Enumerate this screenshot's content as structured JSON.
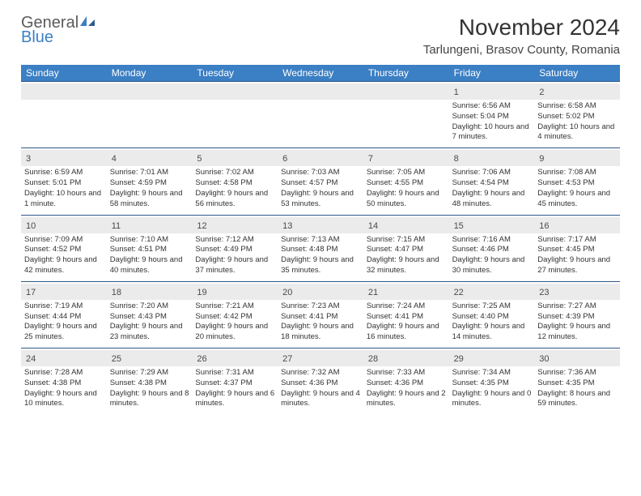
{
  "logo": {
    "word1": "General",
    "word2": "Blue"
  },
  "title": "November 2024",
  "location": "Tarlungeni, Brasov County, Romania",
  "colors": {
    "header_bg": "#3b7fc4",
    "daynum_bg": "#ebebeb",
    "week_border": "#2f5a8a",
    "text": "#333333"
  },
  "weekdays": [
    "Sunday",
    "Monday",
    "Tuesday",
    "Wednesday",
    "Thursday",
    "Friday",
    "Saturday"
  ],
  "weeks": [
    [
      {
        "n": "",
        "sunrise": "",
        "sunset": "",
        "daylight": ""
      },
      {
        "n": "",
        "sunrise": "",
        "sunset": "",
        "daylight": ""
      },
      {
        "n": "",
        "sunrise": "",
        "sunset": "",
        "daylight": ""
      },
      {
        "n": "",
        "sunrise": "",
        "sunset": "",
        "daylight": ""
      },
      {
        "n": "",
        "sunrise": "",
        "sunset": "",
        "daylight": ""
      },
      {
        "n": "1",
        "sunrise": "Sunrise: 6:56 AM",
        "sunset": "Sunset: 5:04 PM",
        "daylight": "Daylight: 10 hours and 7 minutes."
      },
      {
        "n": "2",
        "sunrise": "Sunrise: 6:58 AM",
        "sunset": "Sunset: 5:02 PM",
        "daylight": "Daylight: 10 hours and 4 minutes."
      }
    ],
    [
      {
        "n": "3",
        "sunrise": "Sunrise: 6:59 AM",
        "sunset": "Sunset: 5:01 PM",
        "daylight": "Daylight: 10 hours and 1 minute."
      },
      {
        "n": "4",
        "sunrise": "Sunrise: 7:01 AM",
        "sunset": "Sunset: 4:59 PM",
        "daylight": "Daylight: 9 hours and 58 minutes."
      },
      {
        "n": "5",
        "sunrise": "Sunrise: 7:02 AM",
        "sunset": "Sunset: 4:58 PM",
        "daylight": "Daylight: 9 hours and 56 minutes."
      },
      {
        "n": "6",
        "sunrise": "Sunrise: 7:03 AM",
        "sunset": "Sunset: 4:57 PM",
        "daylight": "Daylight: 9 hours and 53 minutes."
      },
      {
        "n": "7",
        "sunrise": "Sunrise: 7:05 AM",
        "sunset": "Sunset: 4:55 PM",
        "daylight": "Daylight: 9 hours and 50 minutes."
      },
      {
        "n": "8",
        "sunrise": "Sunrise: 7:06 AM",
        "sunset": "Sunset: 4:54 PM",
        "daylight": "Daylight: 9 hours and 48 minutes."
      },
      {
        "n": "9",
        "sunrise": "Sunrise: 7:08 AM",
        "sunset": "Sunset: 4:53 PM",
        "daylight": "Daylight: 9 hours and 45 minutes."
      }
    ],
    [
      {
        "n": "10",
        "sunrise": "Sunrise: 7:09 AM",
        "sunset": "Sunset: 4:52 PM",
        "daylight": "Daylight: 9 hours and 42 minutes."
      },
      {
        "n": "11",
        "sunrise": "Sunrise: 7:10 AM",
        "sunset": "Sunset: 4:51 PM",
        "daylight": "Daylight: 9 hours and 40 minutes."
      },
      {
        "n": "12",
        "sunrise": "Sunrise: 7:12 AM",
        "sunset": "Sunset: 4:49 PM",
        "daylight": "Daylight: 9 hours and 37 minutes."
      },
      {
        "n": "13",
        "sunrise": "Sunrise: 7:13 AM",
        "sunset": "Sunset: 4:48 PM",
        "daylight": "Daylight: 9 hours and 35 minutes."
      },
      {
        "n": "14",
        "sunrise": "Sunrise: 7:15 AM",
        "sunset": "Sunset: 4:47 PM",
        "daylight": "Daylight: 9 hours and 32 minutes."
      },
      {
        "n": "15",
        "sunrise": "Sunrise: 7:16 AM",
        "sunset": "Sunset: 4:46 PM",
        "daylight": "Daylight: 9 hours and 30 minutes."
      },
      {
        "n": "16",
        "sunrise": "Sunrise: 7:17 AM",
        "sunset": "Sunset: 4:45 PM",
        "daylight": "Daylight: 9 hours and 27 minutes."
      }
    ],
    [
      {
        "n": "17",
        "sunrise": "Sunrise: 7:19 AM",
        "sunset": "Sunset: 4:44 PM",
        "daylight": "Daylight: 9 hours and 25 minutes."
      },
      {
        "n": "18",
        "sunrise": "Sunrise: 7:20 AM",
        "sunset": "Sunset: 4:43 PM",
        "daylight": "Daylight: 9 hours and 23 minutes."
      },
      {
        "n": "19",
        "sunrise": "Sunrise: 7:21 AM",
        "sunset": "Sunset: 4:42 PM",
        "daylight": "Daylight: 9 hours and 20 minutes."
      },
      {
        "n": "20",
        "sunrise": "Sunrise: 7:23 AM",
        "sunset": "Sunset: 4:41 PM",
        "daylight": "Daylight: 9 hours and 18 minutes."
      },
      {
        "n": "21",
        "sunrise": "Sunrise: 7:24 AM",
        "sunset": "Sunset: 4:41 PM",
        "daylight": "Daylight: 9 hours and 16 minutes."
      },
      {
        "n": "22",
        "sunrise": "Sunrise: 7:25 AM",
        "sunset": "Sunset: 4:40 PM",
        "daylight": "Daylight: 9 hours and 14 minutes."
      },
      {
        "n": "23",
        "sunrise": "Sunrise: 7:27 AM",
        "sunset": "Sunset: 4:39 PM",
        "daylight": "Daylight: 9 hours and 12 minutes."
      }
    ],
    [
      {
        "n": "24",
        "sunrise": "Sunrise: 7:28 AM",
        "sunset": "Sunset: 4:38 PM",
        "daylight": "Daylight: 9 hours and 10 minutes."
      },
      {
        "n": "25",
        "sunrise": "Sunrise: 7:29 AM",
        "sunset": "Sunset: 4:38 PM",
        "daylight": "Daylight: 9 hours and 8 minutes."
      },
      {
        "n": "26",
        "sunrise": "Sunrise: 7:31 AM",
        "sunset": "Sunset: 4:37 PM",
        "daylight": "Daylight: 9 hours and 6 minutes."
      },
      {
        "n": "27",
        "sunrise": "Sunrise: 7:32 AM",
        "sunset": "Sunset: 4:36 PM",
        "daylight": "Daylight: 9 hours and 4 minutes."
      },
      {
        "n": "28",
        "sunrise": "Sunrise: 7:33 AM",
        "sunset": "Sunset: 4:36 PM",
        "daylight": "Daylight: 9 hours and 2 minutes."
      },
      {
        "n": "29",
        "sunrise": "Sunrise: 7:34 AM",
        "sunset": "Sunset: 4:35 PM",
        "daylight": "Daylight: 9 hours and 0 minutes."
      },
      {
        "n": "30",
        "sunrise": "Sunrise: 7:36 AM",
        "sunset": "Sunset: 4:35 PM",
        "daylight": "Daylight: 8 hours and 59 minutes."
      }
    ]
  ]
}
